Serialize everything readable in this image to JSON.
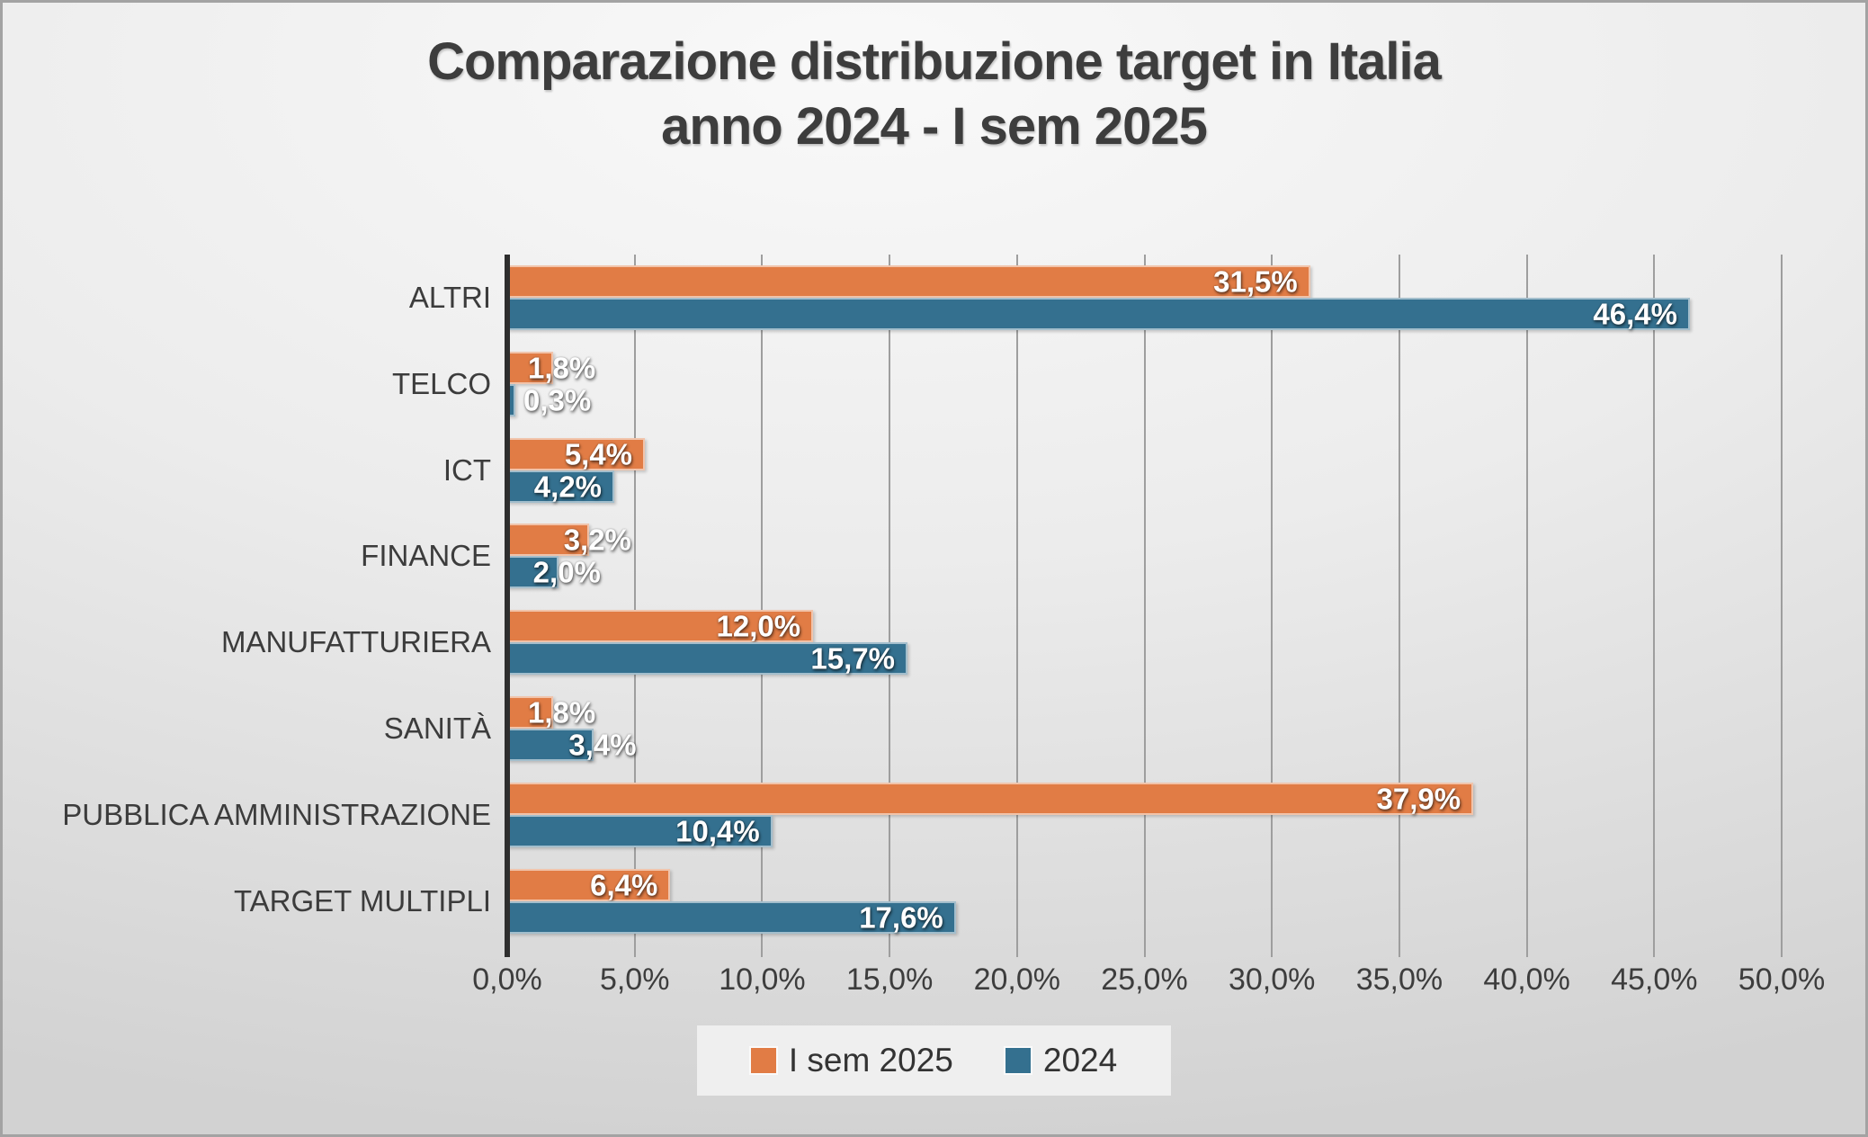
{
  "title": {
    "line1": "Comparazione distribuzione target in Italia",
    "line2": "anno 2024 - I sem 2025"
  },
  "legend": [
    {
      "label": "I sem 2025",
      "color": "#E17C45"
    },
    {
      "label": "2024",
      "color": "#34708F"
    }
  ],
  "colors": {
    "series_2025": "#E17C45",
    "series_2024": "#34708F",
    "text": "#3d3d3d",
    "gridline": "#9e9e9e",
    "axis": "#2e2e2e"
  },
  "chart_data": {
    "type": "bar",
    "orientation": "horizontal",
    "title": "Comparazione distribuzione target in Italia anno 2024 - I sem 2025",
    "categories": [
      "ALTRI",
      "TELCO",
      "ICT",
      "FINANCE",
      "MANUFATTURIERA",
      "SANITÀ",
      "PUBBLICA AMMINISTRAZIONE",
      "TARGET MULTIPLI"
    ],
    "series": [
      {
        "name": "I sem 2025",
        "color": "#E17C45",
        "values": [
          31.5,
          1.8,
          5.4,
          3.2,
          12.0,
          1.8,
          37.9,
          6.4
        ],
        "labels": [
          "31,5%",
          "1,8%",
          "5,4%",
          "3,2%",
          "12,0%",
          "1,8%",
          "37,9%",
          "6,4%"
        ]
      },
      {
        "name": "2024",
        "color": "#34708F",
        "values": [
          46.4,
          0.3,
          4.2,
          2.0,
          15.7,
          3.4,
          10.4,
          17.6
        ],
        "labels": [
          "46,4%",
          "0,3%",
          "4,2%",
          "2,0%",
          "15,7%",
          "3,4%",
          "10,4%",
          "17,6%"
        ]
      }
    ],
    "xlabel": "",
    "ylabel": "",
    "xlim": [
      0,
      50
    ],
    "xticks": [
      0,
      5,
      10,
      15,
      20,
      25,
      30,
      35,
      40,
      45,
      50
    ],
    "xtick_labels": [
      "0,0%",
      "5,0%",
      "10,0%",
      "15,0%",
      "20,0%",
      "25,0%",
      "30,0%",
      "35,0%",
      "40,0%",
      "45,0%",
      "50,0%"
    ],
    "grid": "vertical",
    "legend_position": "bottom",
    "data_label_position": "inside-end"
  }
}
